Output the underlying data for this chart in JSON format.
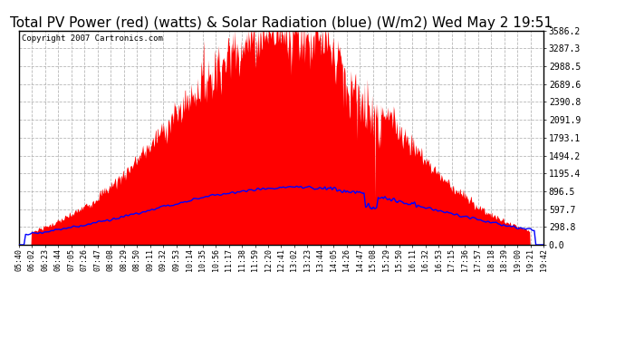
{
  "title": "Total PV Power (red) (watts) & Solar Radiation (blue) (W/m2) Wed May 2 19:51",
  "copyright": "Copyright 2007 Cartronics.com",
  "background_color": "#ffffff",
  "plot_bg_color": "#ffffff",
  "grid_color": "#b0b0b0",
  "yticks": [
    0.0,
    298.8,
    597.7,
    896.5,
    1195.4,
    1494.2,
    1793.1,
    2091.9,
    2390.8,
    2689.6,
    2988.5,
    3287.3,
    3586.2
  ],
  "xlabels": [
    "05:40",
    "06:02",
    "06:23",
    "06:44",
    "07:05",
    "07:26",
    "07:47",
    "08:08",
    "08:29",
    "08:50",
    "09:11",
    "09:32",
    "09:53",
    "10:14",
    "10:35",
    "10:56",
    "11:17",
    "11:38",
    "11:59",
    "12:20",
    "12:41",
    "13:02",
    "13:23",
    "13:44",
    "14:05",
    "14:26",
    "14:47",
    "15:08",
    "15:29",
    "15:50",
    "16:11",
    "16:32",
    "16:53",
    "17:15",
    "17:36",
    "17:57",
    "18:18",
    "18:39",
    "19:00",
    "19:21",
    "19:42"
  ],
  "pv_color": "#ff0000",
  "solar_color": "#0000ff",
  "title_fontsize": 11,
  "ymax": 3586.2,
  "ymin": 0.0,
  "n_points": 1000,
  "noon_min": 421,
  "pv_peak": 3586.2,
  "pv_sigma": 170,
  "solar_peak": 960,
  "solar_sigma": 230,
  "total_minutes": 842
}
